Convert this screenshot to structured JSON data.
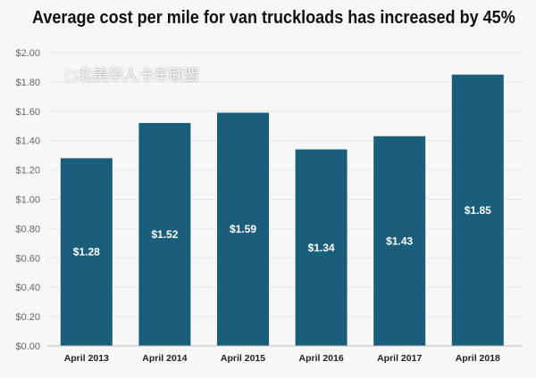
{
  "chart_data": {
    "type": "bar",
    "title": "Average cost per mile for van truckloads has increased by 45%",
    "categories": [
      "April 2013",
      "April 2014",
      "April 2015",
      "April 2016",
      "April 2017",
      "April 2018"
    ],
    "values": [
      1.28,
      1.52,
      1.59,
      1.34,
      1.43,
      1.85
    ],
    "data_labels": [
      "$1.28",
      "$1.52",
      "$1.59",
      "$1.34",
      "$1.43",
      "$1.85"
    ],
    "yticks": [
      "$0.00",
      "$0.20",
      "$0.40",
      "$0.60",
      "$0.80",
      "$1.00",
      "$1.20",
      "$1.40",
      "$1.60",
      "$1.80",
      "$2.00"
    ],
    "ylim": [
      0,
      2.0
    ],
    "grid": true,
    "xlabel": "",
    "ylabel": "",
    "colors": {
      "bar": "#1b5e7b",
      "background": "#f7f7f7",
      "grid": "#e6e6e6"
    }
  },
  "watermark": "北美华人卡车联盟"
}
